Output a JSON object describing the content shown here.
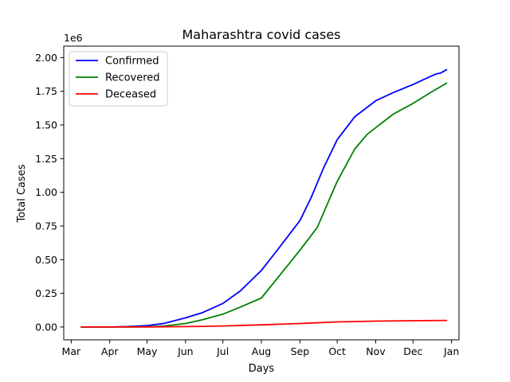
{
  "chart_data": {
    "type": "line",
    "title": "Maharashtra covid cases",
    "xlabel": "Days",
    "ylabel": "Total Cases",
    "y_multiplier_label": "1e6",
    "x_ticks": [
      {
        "date": "2020-03-01",
        "label": "Mar"
      },
      {
        "date": "2020-04-01",
        "label": "Apr"
      },
      {
        "date": "2020-05-01",
        "label": "May"
      },
      {
        "date": "2020-06-01",
        "label": "Jun"
      },
      {
        "date": "2020-07-01",
        "label": "Jul"
      },
      {
        "date": "2020-08-01",
        "label": "Aug"
      },
      {
        "date": "2020-09-01",
        "label": "Sep"
      },
      {
        "date": "2020-10-01",
        "label": "Oct"
      },
      {
        "date": "2020-11-01",
        "label": "Nov"
      },
      {
        "date": "2020-12-01",
        "label": "Dec"
      },
      {
        "date": "2021-01-01",
        "label": "Jan"
      }
    ],
    "y_ticks": [
      {
        "value": 0,
        "label": "0.00"
      },
      {
        "value": 0.25,
        "label": "0.25"
      },
      {
        "value": 0.5,
        "label": "0.50"
      },
      {
        "value": 0.75,
        "label": "0.75"
      },
      {
        "value": 1.0,
        "label": "1.00"
      },
      {
        "value": 1.25,
        "label": "1.25"
      },
      {
        "value": 1.5,
        "label": "1.50"
      },
      {
        "value": 1.75,
        "label": "1.75"
      },
      {
        "value": 2.0,
        "label": "2.00"
      }
    ],
    "xlim": [
      "2020-02-24",
      "2021-01-07"
    ],
    "ylim": [
      -0.095,
      2.085
    ],
    "grid": false,
    "legend_position": "top-left",
    "series": [
      {
        "name": "Confirmed",
        "color": "#0000ff",
        "points": [
          [
            "2020-03-09",
            0
          ],
          [
            "2020-04-01",
            0.0003
          ],
          [
            "2020-04-15",
            0.003
          ],
          [
            "2020-05-01",
            0.011
          ],
          [
            "2020-05-15",
            0.027
          ],
          [
            "2020-06-01",
            0.068
          ],
          [
            "2020-06-15",
            0.108
          ],
          [
            "2020-07-01",
            0.175
          ],
          [
            "2020-07-15",
            0.268
          ],
          [
            "2020-08-01",
            0.42
          ],
          [
            "2020-08-15",
            0.585
          ],
          [
            "2020-09-01",
            0.79
          ],
          [
            "2020-09-10",
            0.96
          ],
          [
            "2020-09-20",
            1.18
          ],
          [
            "2020-10-01",
            1.39
          ],
          [
            "2020-10-15",
            1.56
          ],
          [
            "2020-11-01",
            1.68
          ],
          [
            "2020-11-15",
            1.74
          ],
          [
            "2020-12-01",
            1.8
          ],
          [
            "2020-12-15",
            1.86
          ],
          [
            "2020-12-20",
            1.88
          ],
          [
            "2020-12-23",
            1.885
          ],
          [
            "2020-12-28",
            1.91
          ]
        ]
      },
      {
        "name": "Recovered",
        "color": "#008000",
        "points": [
          [
            "2020-03-09",
            0
          ],
          [
            "2020-04-15",
            0
          ],
          [
            "2020-05-01",
            0.002
          ],
          [
            "2020-05-15",
            0.008
          ],
          [
            "2020-06-01",
            0.026
          ],
          [
            "2020-06-15",
            0.055
          ],
          [
            "2020-07-01",
            0.095
          ],
          [
            "2020-07-15",
            0.148
          ],
          [
            "2020-08-01",
            0.215
          ],
          [
            "2020-08-15",
            0.375
          ],
          [
            "2020-09-01",
            0.57
          ],
          [
            "2020-09-15",
            0.74
          ],
          [
            "2020-09-22",
            0.89
          ],
          [
            "2020-10-01",
            1.08
          ],
          [
            "2020-10-15",
            1.32
          ],
          [
            "2020-10-25",
            1.43
          ],
          [
            "2020-11-01",
            1.48
          ],
          [
            "2020-11-15",
            1.58
          ],
          [
            "2020-12-01",
            1.66
          ],
          [
            "2020-12-15",
            1.74
          ],
          [
            "2020-12-28",
            1.81
          ]
        ]
      },
      {
        "name": "Deceased",
        "color": "#ff0000",
        "points": [
          [
            "2020-03-09",
            0
          ],
          [
            "2020-05-01",
            0.0005
          ],
          [
            "2020-06-01",
            0.003
          ],
          [
            "2020-06-15",
            0.005
          ],
          [
            "2020-07-01",
            0.008
          ],
          [
            "2020-08-01",
            0.016
          ],
          [
            "2020-09-01",
            0.026
          ],
          [
            "2020-10-01",
            0.038
          ],
          [
            "2020-11-01",
            0.044
          ],
          [
            "2020-12-01",
            0.047
          ],
          [
            "2020-12-28",
            0.049
          ]
        ]
      }
    ]
  }
}
